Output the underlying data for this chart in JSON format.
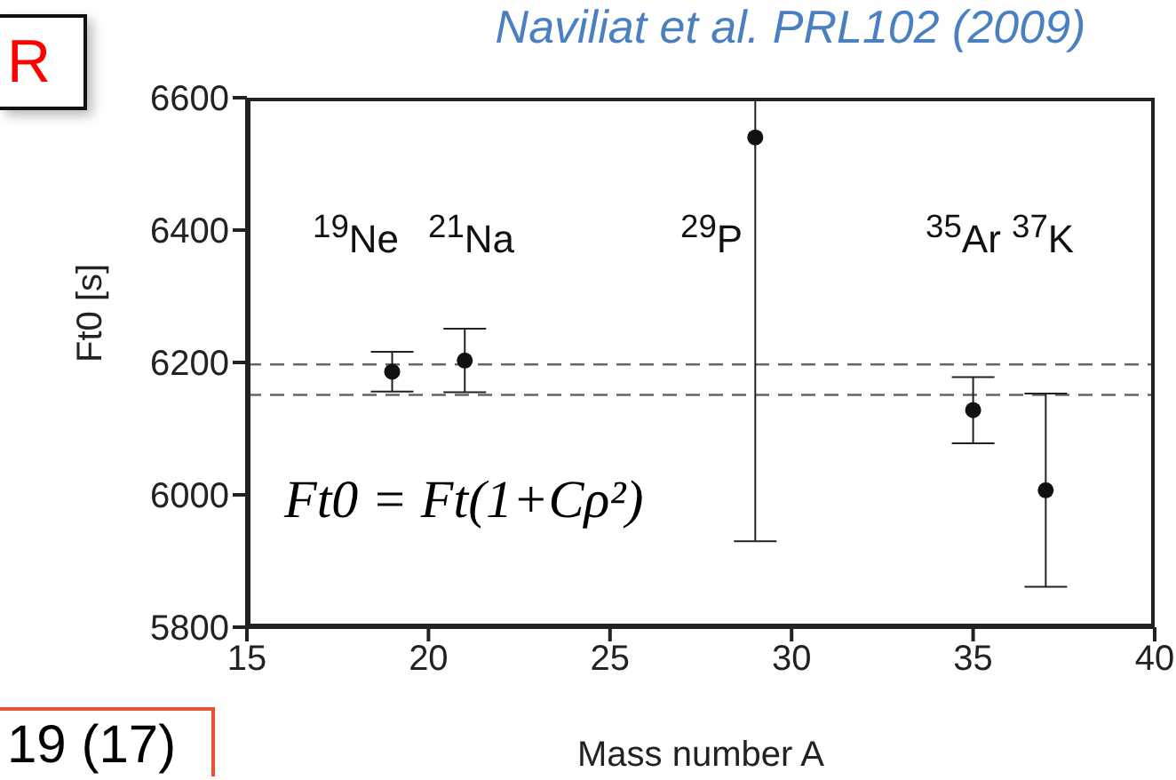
{
  "chart_data": {
    "type": "scatter",
    "title": "Naviliat et al. PRL102 (2009)",
    "xlabel": "Mass number A",
    "ylabel": "Ft0 [s]",
    "x": [
      19,
      21,
      29,
      35,
      37
    ],
    "series": [
      {
        "color": "#111111",
        "values": [
          6186,
          6203,
          6540,
          6128,
          6007
        ],
        "errors": [
          30,
          48,
          610,
          50,
          146
        ]
      }
    ],
    "xlim": [
      15,
      40
    ],
    "xticks": [
      15,
      20,
      25,
      30,
      35,
      40
    ],
    "ylim": [
      5800,
      6600
    ],
    "yticks": [
      5800,
      6000,
      6200,
      6400,
      6600
    ],
    "ref_lines": [
      {
        "axis": "y",
        "value": 6197,
        "color": "#666666",
        "line_style": "dashed"
      },
      {
        "axis": "y",
        "value": 6151,
        "color": "#666666",
        "line_style": "dashed"
      }
    ],
    "annotations": [
      "$^{19}$Ne",
      "$^{21}$Na",
      "$^{29}$P",
      "$^{35}$Ar $^{37}$K",
      "Ft0 = Ft(1+Cρ²)",
      "R",
      "19 (17)"
    ],
    "marker": "circle",
    "grid": false,
    "legend": false
  }
}
